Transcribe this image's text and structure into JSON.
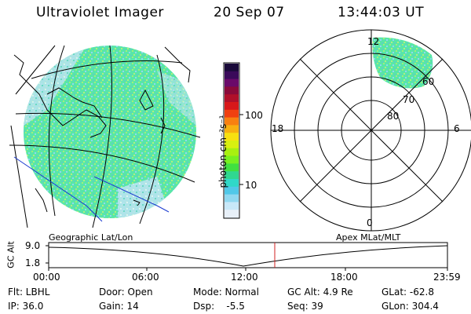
{
  "header": {
    "instrument": "Ultraviolet Imager",
    "date": "20 Sep 07",
    "time": "13:44:03 UT"
  },
  "colorbar": {
    "unit_label": "photon cm⁻²s⁻¹",
    "ticks": [
      "100",
      "10"
    ],
    "colors": [
      "#1a0a3a",
      "#3a0a5a",
      "#6a0a6a",
      "#8a0a3a",
      "#b0102a",
      "#d8181a",
      "#f04010",
      "#f88010",
      "#f8b010",
      "#f8e010",
      "#d8f010",
      "#a8f010",
      "#78f020",
      "#40e040",
      "#30d890",
      "#30d8c8",
      "#50c8e8",
      "#90d8f0",
      "#c8e8f8",
      "#e8f0f8"
    ]
  },
  "polar": {
    "mlt_labels": {
      "top": "12",
      "left": "18",
      "right": "6",
      "bottom": "0"
    },
    "lat_labels": [
      "60",
      "70",
      "80"
    ]
  },
  "timeline": {
    "y_label": "GC Alt",
    "y_ticks": [
      "9.0",
      "1.8"
    ],
    "left_title": "Geographic Lat/Lon",
    "right_title": "Apex MLat/MLT",
    "x_ticks": [
      "00:00",
      "06:00",
      "12:00",
      "18:00",
      "23:59"
    ],
    "marker_color": "#d02020"
  },
  "info": {
    "flt": "Flt: LBHL",
    "ip": "IP: 36.0",
    "door": "Door: Open",
    "gain": "Gain: 14",
    "mode": "Mode: Normal",
    "dsp": "Dsp:    -5.5",
    "gcalt": "GC Alt: 4.9 Re",
    "seq": "Seq: 39",
    "glat": "GLat: -62.8",
    "glon": "GLon: 304.4"
  }
}
